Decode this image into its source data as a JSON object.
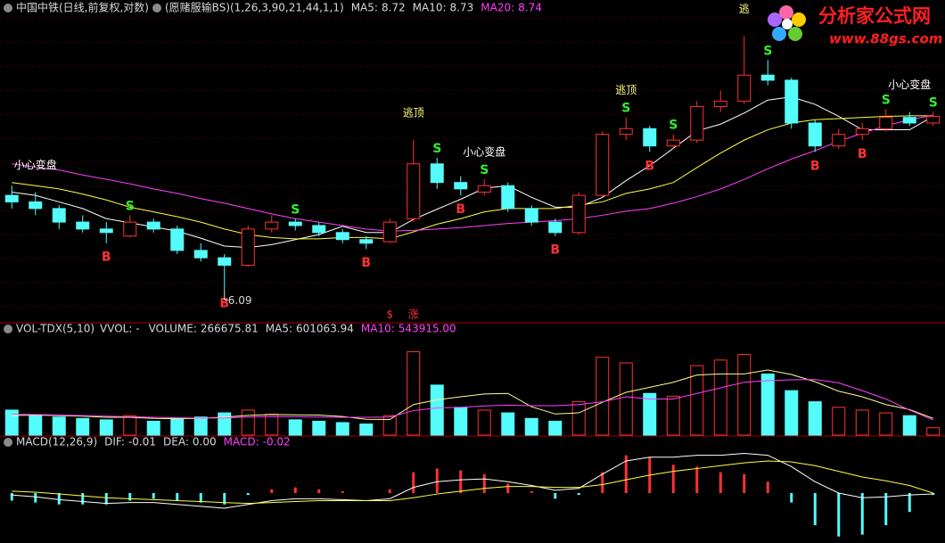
{
  "header": {
    "stock": "中国中铁(日线,前复权,对数)",
    "indicator": "(愿赌服输BS)(1,26,3,90,21,44,1,1)"
  },
  "logo": {
    "name": "分析家公式网",
    "url": "www.88gs.com"
  },
  "chart_data": [
    {
      "type": "candlestick",
      "up_color": "#ff3232",
      "down_color": "#54fcfc",
      "log_scale": true,
      "ylim": [
        5.7,
        10.8
      ],
      "candles": [
        [
          7.4,
          7.55,
          7.2,
          7.3
        ],
        [
          7.3,
          7.45,
          7.1,
          7.2
        ],
        [
          7.2,
          7.25,
          6.9,
          7.0
        ],
        [
          7.0,
          7.1,
          6.85,
          6.9
        ],
        [
          6.9,
          7.0,
          6.7,
          6.85
        ],
        [
          6.8,
          7.1,
          6.78,
          7.0
        ],
        [
          7.0,
          7.05,
          6.85,
          6.9
        ],
        [
          6.9,
          6.95,
          6.55,
          6.6
        ],
        [
          6.6,
          6.7,
          6.45,
          6.5
        ],
        [
          6.5,
          6.55,
          6.09,
          6.4
        ],
        [
          6.4,
          6.95,
          6.38,
          6.9
        ],
        [
          6.9,
          7.1,
          6.85,
          7.0
        ],
        [
          7.0,
          7.05,
          6.88,
          6.95
        ],
        [
          6.95,
          7.0,
          6.8,
          6.85
        ],
        [
          6.85,
          6.9,
          6.7,
          6.75
        ],
        [
          6.75,
          6.8,
          6.62,
          6.7
        ],
        [
          6.72,
          7.05,
          6.7,
          7.0
        ],
        [
          7.05,
          8.3,
          7.0,
          7.9
        ],
        [
          7.9,
          8.0,
          7.5,
          7.6
        ],
        [
          7.6,
          7.7,
          7.4,
          7.5
        ],
        [
          7.45,
          7.65,
          7.4,
          7.55
        ],
        [
          7.55,
          7.6,
          7.15,
          7.2
        ],
        [
          7.2,
          7.25,
          6.95,
          7.0
        ],
        [
          7.0,
          7.05,
          6.8,
          6.85
        ],
        [
          6.85,
          7.45,
          6.82,
          7.4
        ],
        [
          7.4,
          8.45,
          7.38,
          8.4
        ],
        [
          8.4,
          8.7,
          8.3,
          8.5
        ],
        [
          8.5,
          8.55,
          8.1,
          8.2
        ],
        [
          8.2,
          8.4,
          8.15,
          8.3
        ],
        [
          8.3,
          9.0,
          8.25,
          8.9
        ],
        [
          8.9,
          9.2,
          8.8,
          9.0
        ],
        [
          9.0,
          10.3,
          8.95,
          9.5
        ],
        [
          9.5,
          9.8,
          9.3,
          9.4
        ],
        [
          9.4,
          9.45,
          8.5,
          8.6
        ],
        [
          8.6,
          8.65,
          8.1,
          8.2
        ],
        [
          8.2,
          8.5,
          8.15,
          8.4
        ],
        [
          8.4,
          8.6,
          8.3,
          8.5
        ],
        [
          8.5,
          8.85,
          8.45,
          8.7
        ],
        [
          8.7,
          8.8,
          8.55,
          8.6
        ],
        [
          8.6,
          8.8,
          8.55,
          8.72
        ]
      ],
      "low_label_index": 9,
      "series": [
        {
          "name": "MA5:",
          "color": "#ffffff",
          "values": [
            7.45,
            7.4,
            7.3,
            7.2,
            7.05,
            6.99,
            6.93,
            6.87,
            6.77,
            6.66,
            6.64,
            6.68,
            6.75,
            6.82,
            6.94,
            6.85,
            6.85,
            7.04,
            7.19,
            7.34,
            7.51,
            7.55,
            7.37,
            7.22,
            7.22,
            7.37,
            7.63,
            7.87,
            8.16,
            8.46,
            8.58,
            8.78,
            9.02,
            9.08,
            8.94,
            8.72,
            8.48,
            8.48,
            8.48,
            8.72
          ]
        },
        {
          "name": "MA10:",
          "color": "#ffff40",
          "values": [
            7.6,
            7.55,
            7.5,
            7.42,
            7.33,
            7.22,
            7.15,
            7.08,
            7.0,
            6.9,
            6.82,
            6.78,
            6.76,
            6.76,
            6.78,
            6.78,
            6.76,
            6.86,
            6.97,
            7.05,
            7.15,
            7.2,
            7.2,
            7.2,
            7.25,
            7.3,
            7.43,
            7.5,
            7.6,
            7.84,
            8.08,
            8.3,
            8.48,
            8.6,
            8.66,
            8.68,
            8.7,
            8.72,
            8.73,
            8.73
          ]
        },
        {
          "name": "MA20:",
          "color": "#ff40ff",
          "values": [
            7.9,
            7.85,
            7.8,
            7.72,
            7.65,
            7.58,
            7.5,
            7.43,
            7.35,
            7.28,
            7.2,
            7.12,
            7.05,
            7.0,
            6.95,
            6.9,
            6.87,
            6.88,
            6.9,
            6.92,
            6.95,
            6.98,
            7.0,
            7.02,
            7.05,
            7.1,
            7.16,
            7.2,
            7.28,
            7.38,
            7.5,
            7.65,
            7.82,
            7.98,
            8.12,
            8.28,
            8.42,
            8.55,
            8.66,
            8.74
          ]
        }
      ],
      "signal_colors": {
        "B": "#ff3232",
        "S": "#30f030"
      },
      "signals": [
        null,
        null,
        null,
        null,
        "B",
        "S",
        null,
        null,
        null,
        "B",
        null,
        null,
        "S",
        null,
        null,
        "B",
        null,
        null,
        "S",
        "B",
        "S",
        null,
        null,
        "B",
        null,
        null,
        "S",
        "B",
        "S",
        null,
        null,
        null,
        "S",
        null,
        "B",
        null,
        "B",
        "S",
        null,
        "S"
      ],
      "notes": [
        null,
        "小心变盘",
        null,
        null,
        null,
        null,
        null,
        null,
        null,
        null,
        null,
        null,
        null,
        null,
        null,
        null,
        null,
        "逃顶",
        null,
        null,
        "小心变盘",
        null,
        null,
        null,
        null,
        null,
        "逃顶",
        null,
        null,
        null,
        null,
        "逃",
        null,
        null,
        null,
        null,
        null,
        null,
        "小心变盘",
        null
      ],
      "bottom_marks": [
        null,
        null,
        null,
        null,
        null,
        null,
        null,
        null,
        null,
        null,
        null,
        null,
        null,
        null,
        null,
        null,
        "$",
        "涨",
        null,
        null,
        null,
        null,
        null,
        null,
        null,
        null,
        null,
        null,
        null,
        null,
        null,
        null,
        null,
        null,
        null,
        null,
        null,
        null,
        null,
        null
      ]
    },
    {
      "type": "volume",
      "title": "VOL-TDX(5,10)",
      "subtitle": "VVOL: -",
      "value_name": "VOLUME:",
      "ylim": [
        0,
        3400000
      ],
      "values": [
        900000,
        700000,
        650000,
        600000,
        550000,
        700000,
        500000,
        600000,
        650000,
        800000,
        900000,
        750000,
        550000,
        500000,
        450000,
        400000,
        700000,
        3000000,
        1800000,
        1000000,
        900000,
        800000,
        600000,
        500000,
        1200000,
        2800000,
        2600000,
        1500000,
        1400000,
        2500000,
        2700000,
        2900000,
        2200000,
        1600000,
        1200000,
        1000000,
        900000,
        800000,
        700000,
        266675.81
      ],
      "series": [
        {
          "name": "MA5:",
          "color": "#ffff90",
          "values": [
            700000,
            720000,
            700000,
            680000,
            640000,
            640000,
            600000,
            590000,
            600000,
            650000,
            710000,
            740000,
            730000,
            720000,
            670000,
            570000,
            560000,
            1100000,
            1270000,
            1380000,
            1480000,
            1500000,
            1020000,
            760000,
            800000,
            1180000,
            1540000,
            1720000,
            1900000,
            2160000,
            2200000,
            2200000,
            2340000,
            2180000,
            1920000,
            1580000,
            1380000,
            1100000,
            920000,
            601063.94
          ]
        },
        {
          "name": "MA10:",
          "color": "#ff40ff",
          "last_label": "543915.00",
          "values": [
            750000,
            740000,
            720000,
            700000,
            680000,
            660000,
            640000,
            620000,
            610000,
            620000,
            650000,
            670000,
            660000,
            650000,
            640000,
            640000,
            650000,
            880000,
            980000,
            1000000,
            1050000,
            1080000,
            1060000,
            1060000,
            1100000,
            1200000,
            1380000,
            1300000,
            1300000,
            1500000,
            1700000,
            1900000,
            1960000,
            1990000,
            2000000,
            1880000,
            1600000,
            1300000,
            900000,
            543915.0
          ]
        }
      ]
    },
    {
      "type": "macd",
      "title": "MACD(12,26,9)",
      "value_name": "MACD:",
      "value_color": "#ff40ff",
      "ylim": [
        -0.5,
        0.5
      ],
      "values": [
        -0.08,
        -0.1,
        -0.12,
        -0.12,
        -0.12,
        -0.08,
        -0.06,
        -0.08,
        -0.1,
        -0.12,
        -0.02,
        0.04,
        0.06,
        0.04,
        0.02,
        0.0,
        0.04,
        0.22,
        0.26,
        0.24,
        0.2,
        0.1,
        0.02,
        -0.06,
        -0.02,
        0.22,
        0.4,
        0.38,
        0.3,
        0.28,
        0.22,
        0.2,
        0.12,
        -0.1,
        -0.34,
        -0.46,
        -0.44,
        -0.34,
        -0.2,
        -0.02
      ],
      "series": [
        {
          "name": "DIF:",
          "color": "#ffffff",
          "values": [
            -0.02,
            -0.04,
            -0.07,
            -0.09,
            -0.11,
            -0.1,
            -0.1,
            -0.12,
            -0.14,
            -0.16,
            -0.12,
            -0.08,
            -0.06,
            -0.06,
            -0.07,
            -0.08,
            -0.06,
            0.06,
            0.12,
            0.14,
            0.15,
            0.12,
            0.08,
            0.03,
            0.05,
            0.2,
            0.34,
            0.38,
            0.38,
            0.4,
            0.4,
            0.42,
            0.4,
            0.28,
            0.12,
            0.0,
            -0.05,
            -0.04,
            -0.02,
            -0.01
          ]
        },
        {
          "name": "DEA:",
          "color": "#ffff40",
          "last_label": "0.00",
          "values": [
            0.02,
            0.01,
            -0.01,
            -0.03,
            -0.05,
            -0.06,
            -0.07,
            -0.08,
            -0.09,
            -0.1,
            -0.11,
            -0.1,
            -0.09,
            -0.08,
            -0.08,
            -0.08,
            -0.08,
            -0.05,
            -0.01,
            0.02,
            0.05,
            0.07,
            0.07,
            0.06,
            0.06,
            0.09,
            0.14,
            0.19,
            0.23,
            0.26,
            0.29,
            0.32,
            0.34,
            0.33,
            0.29,
            0.23,
            0.17,
            0.13,
            0.08,
            0.0
          ]
        }
      ]
    }
  ]
}
